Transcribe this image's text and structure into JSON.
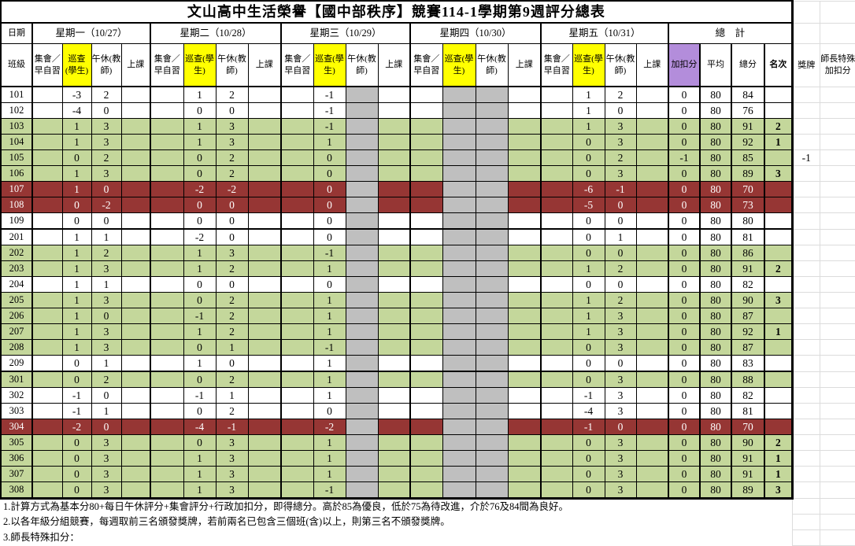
{
  "title": "文山高中生活榮譽【國中部秩序】競賽114-1學期第9週評分總表",
  "colors": {
    "green": "#c4d79b",
    "red": "#963634",
    "yellow": "#ffff00",
    "purple": "#b38ddb",
    "gray": "#bfbfbf",
    "gridline": "#dcdcdc"
  },
  "header": {
    "date_label": "日期",
    "class_label": "班級",
    "days": [
      "星期一（10/27）",
      "星期二（10/28）",
      "星期三（10/29）",
      "星期四（10/30）",
      "星期五（10/31）"
    ],
    "sub_columns": [
      "集會／早自習",
      "巡查(學生)",
      "午休(教師)",
      "上課"
    ],
    "totals_label": "總　計",
    "totals_columns": [
      "加扣分",
      "平均",
      "總分",
      "名次"
    ],
    "medal_label": "獎牌",
    "special_label": "師長特殊加扣分"
  },
  "rows": [
    {
      "cls": "101",
      "shade": "white",
      "days": [
        [
          "",
          "-3",
          "2",
          ""
        ],
        [
          "",
          "1",
          "2",
          ""
        ],
        [
          "",
          "-1",
          "",
          ""
        ],
        [
          "",
          "",
          "",
          ""
        ],
        [
          "",
          "1",
          "2",
          ""
        ]
      ],
      "adj": "0",
      "avg": "80",
      "total": "84",
      "rank": "",
      "medal": "",
      "special": ""
    },
    {
      "cls": "102",
      "shade": "white",
      "days": [
        [
          "",
          "-4",
          "0",
          ""
        ],
        [
          "",
          "0",
          "0",
          ""
        ],
        [
          "",
          "-1",
          "",
          ""
        ],
        [
          "",
          "",
          "",
          ""
        ],
        [
          "",
          "1",
          "0",
          ""
        ]
      ],
      "adj": "0",
      "avg": "80",
      "total": "76",
      "rank": "",
      "medal": "",
      "special": ""
    },
    {
      "cls": "103",
      "shade": "green",
      "days": [
        [
          "",
          "1",
          "3",
          ""
        ],
        [
          "",
          "1",
          "3",
          ""
        ],
        [
          "",
          "-1",
          "",
          ""
        ],
        [
          "",
          "",
          "",
          ""
        ],
        [
          "",
          "1",
          "3",
          ""
        ]
      ],
      "adj": "0",
      "avg": "80",
      "total": "91",
      "rank": "2",
      "medal": "",
      "special": ""
    },
    {
      "cls": "104",
      "shade": "green",
      "days": [
        [
          "",
          "1",
          "3",
          ""
        ],
        [
          "",
          "1",
          "3",
          ""
        ],
        [
          "",
          "1",
          "",
          ""
        ],
        [
          "",
          "",
          "",
          ""
        ],
        [
          "",
          "0",
          "3",
          ""
        ]
      ],
      "adj": "0",
      "avg": "80",
      "total": "92",
      "rank": "1",
      "medal": "",
      "special": ""
    },
    {
      "cls": "105",
      "shade": "green",
      "days": [
        [
          "",
          "0",
          "2",
          ""
        ],
        [
          "",
          "0",
          "2",
          ""
        ],
        [
          "",
          "0",
          "",
          ""
        ],
        [
          "",
          "",
          "",
          ""
        ],
        [
          "",
          "0",
          "2",
          ""
        ]
      ],
      "adj": "-1",
      "avg": "80",
      "total": "85",
      "rank": "",
      "medal": "-1",
      "special": ""
    },
    {
      "cls": "106",
      "shade": "green",
      "days": [
        [
          "",
          "1",
          "3",
          ""
        ],
        [
          "",
          "0",
          "2",
          ""
        ],
        [
          "",
          "0",
          "",
          ""
        ],
        [
          "",
          "",
          "",
          ""
        ],
        [
          "",
          "0",
          "3",
          ""
        ]
      ],
      "adj": "0",
      "avg": "80",
      "total": "89",
      "rank": "3",
      "medal": "",
      "special": ""
    },
    {
      "cls": "107",
      "shade": "red",
      "days": [
        [
          "",
          "1",
          "0",
          ""
        ],
        [
          "",
          "-2",
          "-2",
          ""
        ],
        [
          "",
          "0",
          "",
          ""
        ],
        [
          "",
          "",
          "",
          ""
        ],
        [
          "",
          "-6",
          "-1",
          ""
        ]
      ],
      "adj": "0",
      "avg": "80",
      "total": "70",
      "rank": "",
      "medal": "",
      "special": ""
    },
    {
      "cls": "108",
      "shade": "red",
      "days": [
        [
          "",
          "0",
          "-2",
          ""
        ],
        [
          "",
          "0",
          "0",
          ""
        ],
        [
          "",
          "0",
          "",
          ""
        ],
        [
          "",
          "",
          "",
          ""
        ],
        [
          "",
          "-5",
          "0",
          ""
        ]
      ],
      "adj": "0",
      "avg": "80",
      "total": "73",
      "rank": "",
      "medal": "",
      "special": ""
    },
    {
      "cls": "109",
      "shade": "white",
      "days": [
        [
          "",
          "0",
          "0",
          ""
        ],
        [
          "",
          "0",
          "0",
          ""
        ],
        [
          "",
          "0",
          "",
          ""
        ],
        [
          "",
          "",
          "",
          ""
        ],
        [
          "",
          "0",
          "0",
          ""
        ]
      ],
      "adj": "0",
      "avg": "80",
      "total": "80",
      "rank": "",
      "medal": "",
      "special": ""
    },
    {
      "cls": "201",
      "shade": "white",
      "days": [
        [
          "",
          "1",
          "1",
          ""
        ],
        [
          "",
          "-2",
          "0",
          ""
        ],
        [
          "",
          "0",
          "",
          ""
        ],
        [
          "",
          "",
          "",
          ""
        ],
        [
          "",
          "0",
          "1",
          ""
        ]
      ],
      "adj": "0",
      "avg": "80",
      "total": "81",
      "rank": "",
      "medal": "",
      "special": ""
    },
    {
      "cls": "202",
      "shade": "green",
      "days": [
        [
          "",
          "1",
          "2",
          ""
        ],
        [
          "",
          "1",
          "3",
          ""
        ],
        [
          "",
          "-1",
          "",
          ""
        ],
        [
          "",
          "",
          "",
          ""
        ],
        [
          "",
          "0",
          "0",
          ""
        ]
      ],
      "adj": "0",
      "avg": "80",
      "total": "86",
      "rank": "",
      "medal": "",
      "special": ""
    },
    {
      "cls": "203",
      "shade": "green",
      "days": [
        [
          "",
          "1",
          "3",
          ""
        ],
        [
          "",
          "1",
          "2",
          ""
        ],
        [
          "",
          "1",
          "",
          ""
        ],
        [
          "",
          "",
          "",
          ""
        ],
        [
          "",
          "1",
          "2",
          ""
        ]
      ],
      "adj": "0",
      "avg": "80",
      "total": "91",
      "rank": "2",
      "medal": "",
      "special": ""
    },
    {
      "cls": "204",
      "shade": "white",
      "days": [
        [
          "",
          "1",
          "1",
          ""
        ],
        [
          "",
          "0",
          "0",
          ""
        ],
        [
          "",
          "0",
          "",
          ""
        ],
        [
          "",
          "",
          "",
          ""
        ],
        [
          "",
          "0",
          "0",
          ""
        ]
      ],
      "adj": "0",
      "avg": "80",
      "total": "82",
      "rank": "",
      "medal": "",
      "special": ""
    },
    {
      "cls": "205",
      "shade": "green",
      "days": [
        [
          "",
          "1",
          "3",
          ""
        ],
        [
          "",
          "0",
          "2",
          ""
        ],
        [
          "",
          "1",
          "",
          ""
        ],
        [
          "",
          "",
          "",
          ""
        ],
        [
          "",
          "1",
          "2",
          ""
        ]
      ],
      "adj": "0",
      "avg": "80",
      "total": "90",
      "rank": "3",
      "medal": "",
      "special": ""
    },
    {
      "cls": "206",
      "shade": "green",
      "days": [
        [
          "",
          "1",
          "0",
          ""
        ],
        [
          "",
          "-1",
          "2",
          ""
        ],
        [
          "",
          "1",
          "",
          ""
        ],
        [
          "",
          "",
          "",
          ""
        ],
        [
          "",
          "1",
          "3",
          ""
        ]
      ],
      "adj": "0",
      "avg": "80",
      "total": "87",
      "rank": "",
      "medal": "",
      "special": ""
    },
    {
      "cls": "207",
      "shade": "green",
      "days": [
        [
          "",
          "1",
          "3",
          ""
        ],
        [
          "",
          "1",
          "2",
          ""
        ],
        [
          "",
          "1",
          "",
          ""
        ],
        [
          "",
          "",
          "",
          ""
        ],
        [
          "",
          "1",
          "3",
          ""
        ]
      ],
      "adj": "0",
      "avg": "80",
      "total": "92",
      "rank": "1",
      "medal": "",
      "special": ""
    },
    {
      "cls": "208",
      "shade": "green",
      "days": [
        [
          "",
          "1",
          "3",
          ""
        ],
        [
          "",
          "0",
          "1",
          ""
        ],
        [
          "",
          "-1",
          "",
          ""
        ],
        [
          "",
          "",
          "",
          ""
        ],
        [
          "",
          "0",
          "3",
          ""
        ]
      ],
      "adj": "0",
      "avg": "80",
      "total": "87",
      "rank": "",
      "medal": "",
      "special": ""
    },
    {
      "cls": "209",
      "shade": "white",
      "days": [
        [
          "",
          "0",
          "1",
          ""
        ],
        [
          "",
          "1",
          "0",
          ""
        ],
        [
          "",
          "1",
          "",
          ""
        ],
        [
          "",
          "",
          "",
          ""
        ],
        [
          "",
          "0",
          "0",
          ""
        ]
      ],
      "adj": "0",
      "avg": "80",
      "total": "83",
      "rank": "",
      "medal": "",
      "special": ""
    },
    {
      "cls": "301",
      "shade": "green",
      "days": [
        [
          "",
          "0",
          "2",
          ""
        ],
        [
          "",
          "0",
          "2",
          ""
        ],
        [
          "",
          "1",
          "",
          ""
        ],
        [
          "",
          "",
          "",
          ""
        ],
        [
          "",
          "0",
          "3",
          ""
        ]
      ],
      "adj": "0",
      "avg": "80",
      "total": "88",
      "rank": "",
      "medal": "",
      "special": ""
    },
    {
      "cls": "302",
      "shade": "white",
      "days": [
        [
          "",
          "-1",
          "0",
          ""
        ],
        [
          "",
          "-1",
          "1",
          ""
        ],
        [
          "",
          "1",
          "",
          ""
        ],
        [
          "",
          "",
          "",
          ""
        ],
        [
          "",
          "-1",
          "3",
          ""
        ]
      ],
      "adj": "0",
      "avg": "80",
      "total": "82",
      "rank": "",
      "medal": "",
      "special": ""
    },
    {
      "cls": "303",
      "shade": "white",
      "days": [
        [
          "",
          "-1",
          "1",
          ""
        ],
        [
          "",
          "0",
          "2",
          ""
        ],
        [
          "",
          "0",
          "",
          ""
        ],
        [
          "",
          "",
          "",
          ""
        ],
        [
          "",
          "-4",
          "3",
          ""
        ]
      ],
      "adj": "0",
      "avg": "80",
      "total": "81",
      "rank": "",
      "medal": "",
      "special": ""
    },
    {
      "cls": "304",
      "shade": "red",
      "days": [
        [
          "",
          "-2",
          "0",
          ""
        ],
        [
          "",
          "-4",
          "-1",
          ""
        ],
        [
          "",
          "-2",
          "",
          ""
        ],
        [
          "",
          "",
          "",
          ""
        ],
        [
          "",
          "-1",
          "0",
          ""
        ]
      ],
      "adj": "0",
      "avg": "80",
      "total": "70",
      "rank": "",
      "medal": "",
      "special": ""
    },
    {
      "cls": "305",
      "shade": "green",
      "days": [
        [
          "",
          "0",
          "3",
          ""
        ],
        [
          "",
          "0",
          "3",
          ""
        ],
        [
          "",
          "1",
          "",
          ""
        ],
        [
          "",
          "",
          "",
          ""
        ],
        [
          "",
          "0",
          "3",
          ""
        ]
      ],
      "adj": "0",
      "avg": "80",
      "total": "90",
      "rank": "2",
      "medal": "",
      "special": ""
    },
    {
      "cls": "306",
      "shade": "green",
      "days": [
        [
          "",
          "0",
          "3",
          ""
        ],
        [
          "",
          "1",
          "3",
          ""
        ],
        [
          "",
          "1",
          "",
          ""
        ],
        [
          "",
          "",
          "",
          ""
        ],
        [
          "",
          "0",
          "3",
          ""
        ]
      ],
      "adj": "0",
      "avg": "80",
      "total": "91",
      "rank": "1",
      "medal": "",
      "special": ""
    },
    {
      "cls": "307",
      "shade": "green",
      "days": [
        [
          "",
          "0",
          "3",
          ""
        ],
        [
          "",
          "1",
          "3",
          ""
        ],
        [
          "",
          "1",
          "",
          ""
        ],
        [
          "",
          "",
          "",
          ""
        ],
        [
          "",
          "0",
          "3",
          ""
        ]
      ],
      "adj": "0",
      "avg": "80",
      "total": "91",
      "rank": "1",
      "medal": "",
      "special": ""
    },
    {
      "cls": "308",
      "shade": "green",
      "days": [
        [
          "",
          "0",
          "3",
          ""
        ],
        [
          "",
          "1",
          "3",
          ""
        ],
        [
          "",
          "-1",
          "",
          ""
        ],
        [
          "",
          "",
          "",
          ""
        ],
        [
          "",
          "0",
          "3",
          ""
        ]
      ],
      "adj": "0",
      "avg": "80",
      "total": "89",
      "rank": "3",
      "medal": "",
      "special": ""
    }
  ],
  "notes": [
    "1.計算方式為基本分80+每日午休評分+集會評分+行政加扣分，即得總分。高於85為優良，低於75為待改進，介於76及84間為良好。",
    "2.以各年級分組競賽，每週取前三名頒發獎牌，若前兩名已包含三個班(含)以上，則第三名不頒發獎牌。",
    "3.師長特殊扣分："
  ]
}
